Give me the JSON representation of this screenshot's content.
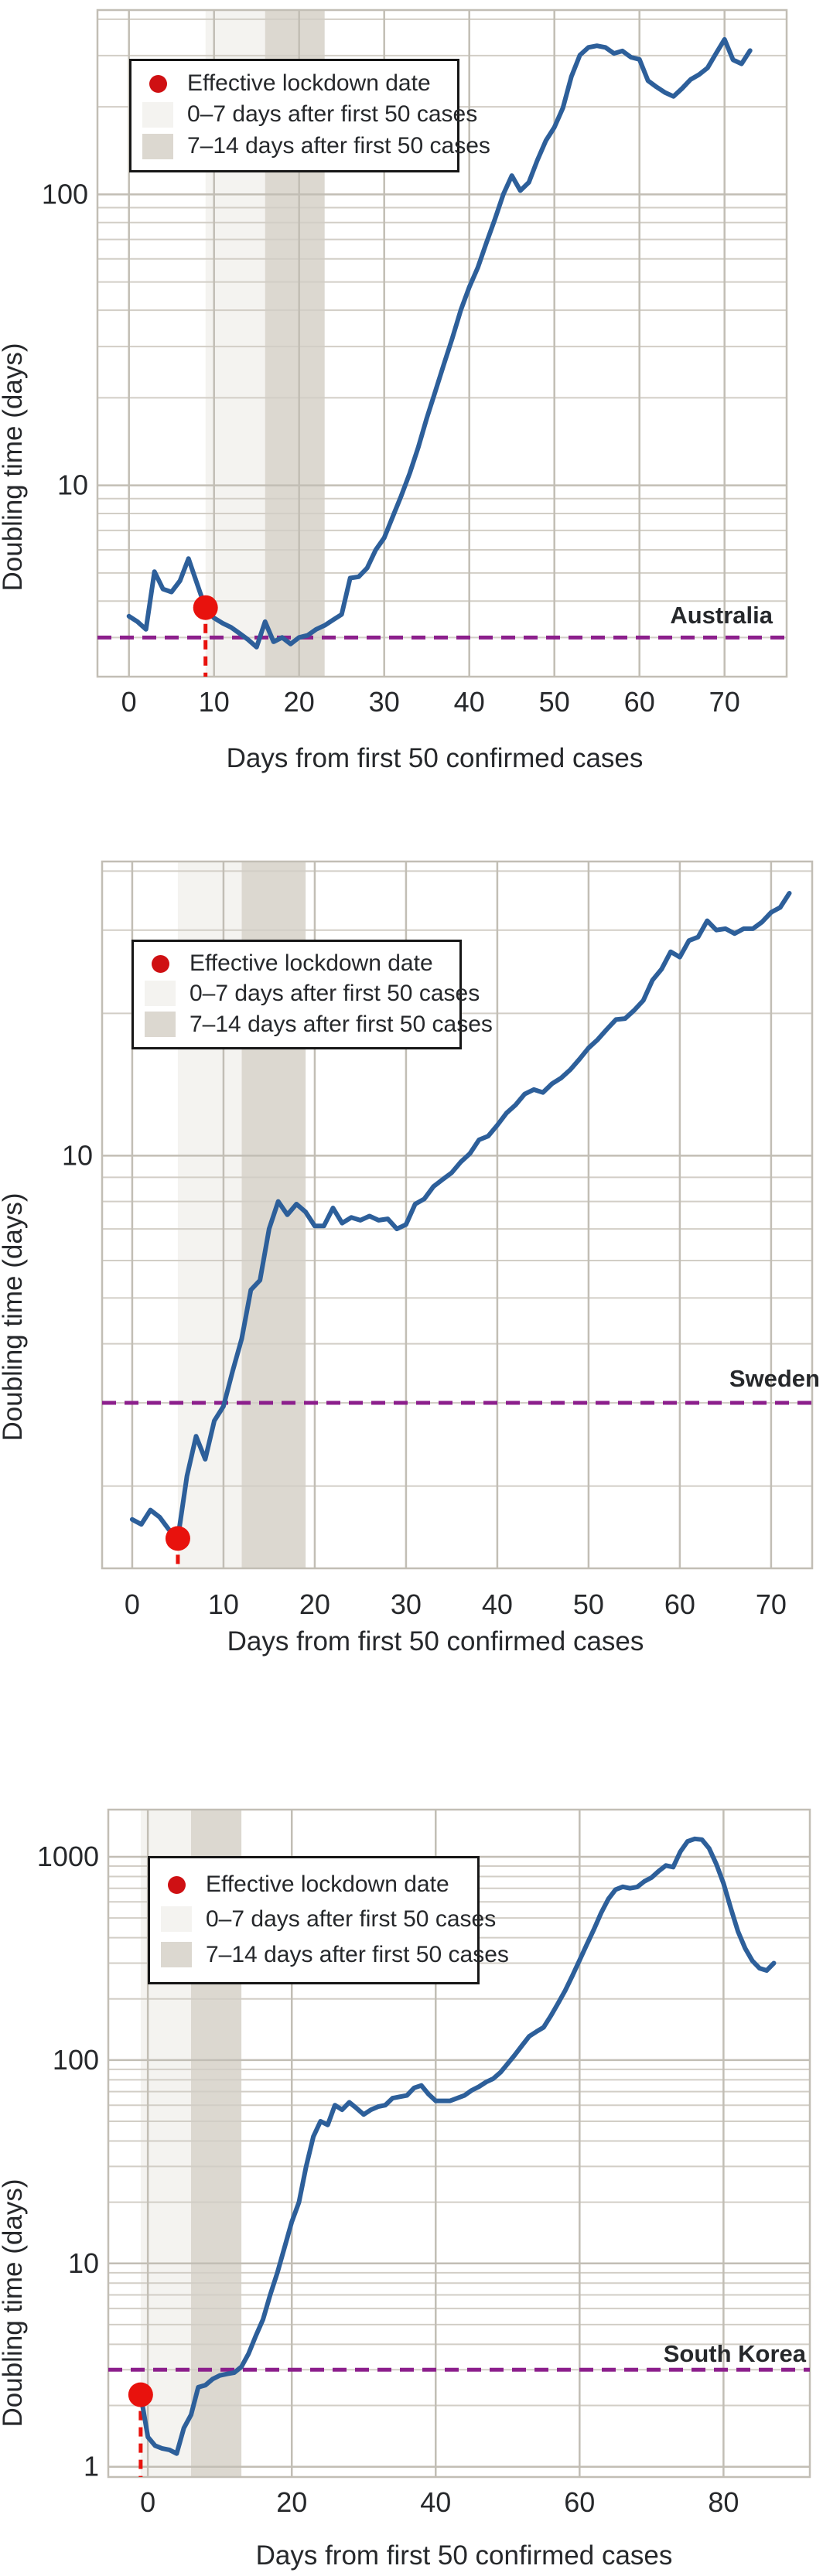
{
  "page": {
    "background": "#ffffff"
  },
  "colors": {
    "line_blue": "#2d5f9a",
    "lockdown_red": "#e8120d",
    "legend_dot_red": "#cf1013",
    "reference_purple": "#8c1f8c",
    "band_light": "#f4f3f0",
    "band_dark": "#dcd8d0",
    "grid_minor": "#d2cec6",
    "grid_major": "#c2beb5",
    "text": "#26282b"
  },
  "legend": {
    "items": [
      {
        "icon": "lockdown-dot-icon",
        "label": "Effective lockdown date"
      },
      {
        "icon": "light-band-swatch",
        "label": "0–7 days after first 50 cases"
      },
      {
        "icon": "dark-band-swatch",
        "label": "7–14 days after first 50 cases"
      }
    ]
  },
  "chart_data": [
    {
      "type": "line",
      "country": "Australia",
      "xlabel": "Days from first 50 confirmed cases",
      "ylabel": "Doubling time (days)",
      "xlim": [
        -3.7,
        77.3
      ],
      "ylim_log": [
        2.2,
        430
      ],
      "xticks": [
        0,
        10,
        20,
        30,
        40,
        50,
        60,
        70
      ],
      "yticks": [
        {
          "v": 10,
          "label": "10"
        },
        {
          "v": 100,
          "label": "100"
        }
      ],
      "grid_minor_y": [
        3,
        4,
        5,
        6,
        7,
        8,
        9,
        20,
        30,
        40,
        50,
        60,
        70,
        80,
        90,
        200,
        300,
        400
      ],
      "reference_line_value": 3.0,
      "lockdown": {
        "day": 9,
        "value": 3.8
      },
      "bands": {
        "light_days": [
          9,
          16
        ],
        "dark_days": [
          16,
          23
        ]
      },
      "series": [
        [
          0,
          3.55
        ],
        [
          1,
          3.4
        ],
        [
          2,
          3.2
        ],
        [
          3,
          5.05
        ],
        [
          4,
          4.4
        ],
        [
          5,
          4.3
        ],
        [
          6,
          4.7
        ],
        [
          7,
          5.6
        ],
        [
          8,
          4.6
        ],
        [
          9,
          3.78
        ],
        [
          10,
          3.5
        ],
        [
          11,
          3.36
        ],
        [
          12,
          3.25
        ],
        [
          13,
          3.1
        ],
        [
          14,
          2.95
        ],
        [
          15,
          2.78
        ],
        [
          16,
          3.4
        ],
        [
          17,
          2.9
        ],
        [
          18,
          3.0
        ],
        [
          19,
          2.85
        ],
        [
          20,
          3.0
        ],
        [
          21,
          3.05
        ],
        [
          22,
          3.2
        ],
        [
          23,
          3.3
        ],
        [
          24,
          3.45
        ],
        [
          25,
          3.6
        ],
        [
          26,
          4.8
        ],
        [
          27,
          4.85
        ],
        [
          28,
          5.2
        ],
        [
          29,
          6.0
        ],
        [
          30,
          6.6
        ],
        [
          31,
          7.8
        ],
        [
          32,
          9.2
        ],
        [
          33,
          11
        ],
        [
          34,
          13.5
        ],
        [
          35,
          17
        ],
        [
          36,
          21
        ],
        [
          37,
          26
        ],
        [
          38,
          32
        ],
        [
          39,
          40
        ],
        [
          40,
          48
        ],
        [
          41,
          56
        ],
        [
          42,
          68
        ],
        [
          43,
          82
        ],
        [
          44,
          100
        ],
        [
          45,
          116
        ],
        [
          46,
          103
        ],
        [
          47,
          110
        ],
        [
          48,
          131
        ],
        [
          49,
          153
        ],
        [
          50,
          170
        ],
        [
          51,
          198
        ],
        [
          52,
          254
        ],
        [
          53,
          301
        ],
        [
          54,
          320
        ],
        [
          55,
          324
        ],
        [
          56,
          320
        ],
        [
          57,
          305
        ],
        [
          58,
          311
        ],
        [
          59,
          296
        ],
        [
          60,
          291
        ],
        [
          61,
          246
        ],
        [
          62,
          234
        ],
        [
          63,
          224
        ],
        [
          64,
          217
        ],
        [
          65,
          231
        ],
        [
          66,
          248
        ],
        [
          67,
          258
        ],
        [
          68,
          272
        ],
        [
          69,
          305
        ],
        [
          70,
          341
        ],
        [
          71,
          290
        ],
        [
          72,
          281
        ],
        [
          73,
          312
        ]
      ]
    },
    {
      "type": "line",
      "country": "Sweden",
      "xlabel": "Days from first 50 confirmed cases",
      "ylabel": "Doubling time (days)",
      "xlim": [
        -3.3,
        74.5
      ],
      "ylim_log": [
        1.34,
        41.9
      ],
      "xticks": [
        0,
        10,
        20,
        30,
        40,
        50,
        60,
        70
      ],
      "yticks": [
        {
          "v": 10,
          "label": "10"
        }
      ],
      "grid_minor_y": [
        2,
        3,
        4,
        5,
        6,
        7,
        8,
        9,
        20,
        30,
        40
      ],
      "reference_line_value": 3.0,
      "lockdown": {
        "day": 5,
        "value": 1.55
      },
      "bands": {
        "light_days": [
          5,
          12
        ],
        "dark_days": [
          12,
          19
        ]
      },
      "series": [
        [
          0,
          1.7
        ],
        [
          1,
          1.66
        ],
        [
          2,
          1.78
        ],
        [
          3,
          1.72
        ],
        [
          4,
          1.62
        ],
        [
          5,
          1.55
        ],
        [
          6,
          2.1
        ],
        [
          7,
          2.55
        ],
        [
          8,
          2.28
        ],
        [
          9,
          2.75
        ],
        [
          10,
          2.95
        ],
        [
          11,
          3.5
        ],
        [
          12,
          4.1
        ],
        [
          13,
          5.2
        ],
        [
          14,
          5.45
        ],
        [
          15,
          7.0
        ],
        [
          16,
          8.0
        ],
        [
          17,
          7.5
        ],
        [
          18,
          7.9
        ],
        [
          19,
          7.6
        ],
        [
          20,
          7.1
        ],
        [
          21,
          7.1
        ],
        [
          22,
          7.75
        ],
        [
          23,
          7.2
        ],
        [
          24,
          7.4
        ],
        [
          25,
          7.3
        ],
        [
          26,
          7.45
        ],
        [
          27,
          7.3
        ],
        [
          28,
          7.35
        ],
        [
          29,
          7.0
        ],
        [
          30,
          7.15
        ],
        [
          31,
          7.9
        ],
        [
          32,
          8.1
        ],
        [
          33,
          8.6
        ],
        [
          34,
          8.9
        ],
        [
          35,
          9.2
        ],
        [
          36,
          9.7
        ],
        [
          37,
          10.1
        ],
        [
          38,
          10.8
        ],
        [
          39,
          11.0
        ],
        [
          40,
          11.6
        ],
        [
          41,
          12.3
        ],
        [
          42,
          12.8
        ],
        [
          43,
          13.5
        ],
        [
          44,
          13.8
        ],
        [
          45,
          13.6
        ],
        [
          46,
          14.2
        ],
        [
          47,
          14.6
        ],
        [
          48,
          15.2
        ],
        [
          49,
          16.0
        ],
        [
          50,
          16.9
        ],
        [
          51,
          17.6
        ],
        [
          52,
          18.5
        ],
        [
          53,
          19.4
        ],
        [
          54,
          19.5
        ],
        [
          55,
          20.3
        ],
        [
          56,
          21.3
        ],
        [
          57,
          23.5
        ],
        [
          58,
          24.8
        ],
        [
          59,
          27.0
        ],
        [
          60,
          26.3
        ],
        [
          61,
          28.5
        ],
        [
          62,
          29.0
        ],
        [
          63,
          31.4
        ],
        [
          64,
          30.0
        ],
        [
          65,
          30.2
        ],
        [
          66,
          29.5
        ],
        [
          67,
          30.2
        ],
        [
          68,
          30.2
        ],
        [
          69,
          31.2
        ],
        [
          70,
          32.7
        ],
        [
          71,
          33.5
        ],
        [
          72,
          35.9
        ]
      ]
    },
    {
      "type": "line",
      "country": "South Korea",
      "xlabel": "Days from first 50 confirmed cases",
      "ylabel": "Doubling time (days)",
      "xlim": [
        -5.5,
        92.0
      ],
      "ylim_log": [
        0.89,
        1706
      ],
      "xticks": [
        0,
        20,
        40,
        60,
        80
      ],
      "yticks": [
        {
          "v": 1,
          "label": "1"
        },
        {
          "v": 10,
          "label": "10"
        },
        {
          "v": 100,
          "label": "100"
        },
        {
          "v": 1000,
          "label": "1000"
        }
      ],
      "grid_minor_y": [
        2,
        3,
        4,
        5,
        6,
        7,
        8,
        9,
        20,
        30,
        40,
        50,
        60,
        70,
        80,
        90,
        200,
        300,
        400,
        500,
        600,
        700,
        800,
        900
      ],
      "reference_line_value": 3.0,
      "lockdown": {
        "day": -1,
        "value": 2.26
      },
      "bands": {
        "light_days": [
          -1,
          6
        ],
        "dark_days": [
          6,
          13
        ]
      },
      "series": [
        [
          -1,
          2.26
        ],
        [
          0,
          1.4
        ],
        [
          1,
          1.27
        ],
        [
          2,
          1.23
        ],
        [
          3,
          1.21
        ],
        [
          4,
          1.16
        ],
        [
          5,
          1.55
        ],
        [
          6,
          1.8
        ],
        [
          7,
          2.46
        ],
        [
          8,
          2.52
        ],
        [
          9,
          2.7
        ],
        [
          10,
          2.81
        ],
        [
          11,
          2.86
        ],
        [
          12,
          2.9
        ],
        [
          13,
          3.1
        ],
        [
          14,
          3.6
        ],
        [
          15,
          4.4
        ],
        [
          16,
          5.3
        ],
        [
          17,
          7.0
        ],
        [
          18,
          9.0
        ],
        [
          19,
          12
        ],
        [
          20,
          16
        ],
        [
          21,
          20
        ],
        [
          22,
          30
        ],
        [
          23,
          42
        ],
        [
          24,
          50
        ],
        [
          25,
          48
        ],
        [
          26,
          60
        ],
        [
          27,
          57
        ],
        [
          28,
          62
        ],
        [
          29,
          58
        ],
        [
          30,
          54
        ],
        [
          31,
          57
        ],
        [
          32,
          59
        ],
        [
          33,
          60
        ],
        [
          34,
          65
        ],
        [
          35,
          66
        ],
        [
          36,
          67
        ],
        [
          37,
          73
        ],
        [
          38,
          75
        ],
        [
          39,
          68
        ],
        [
          40,
          63
        ],
        [
          41,
          63
        ],
        [
          42,
          63
        ],
        [
          43,
          65
        ],
        [
          44,
          67
        ],
        [
          45,
          71
        ],
        [
          46,
          74
        ],
        [
          47,
          78
        ],
        [
          48,
          81
        ],
        [
          49,
          87
        ],
        [
          50,
          96
        ],
        [
          51,
          106
        ],
        [
          52,
          118
        ],
        [
          53,
          131
        ],
        [
          54,
          138
        ],
        [
          55,
          145
        ],
        [
          56,
          165
        ],
        [
          57,
          190
        ],
        [
          58,
          220
        ],
        [
          59,
          260
        ],
        [
          60,
          310
        ],
        [
          61,
          370
        ],
        [
          62,
          440
        ],
        [
          63,
          530
        ],
        [
          64,
          620
        ],
        [
          65,
          690
        ],
        [
          66,
          712
        ],
        [
          67,
          700
        ],
        [
          68,
          710
        ],
        [
          69,
          757
        ],
        [
          70,
          790
        ],
        [
          71,
          850
        ],
        [
          72,
          906
        ],
        [
          73,
          890
        ],
        [
          74,
          1060
        ],
        [
          75,
          1190
        ],
        [
          76,
          1225
        ],
        [
          77,
          1215
        ],
        [
          78,
          1100
        ],
        [
          79,
          920
        ],
        [
          80,
          740
        ],
        [
          81,
          560
        ],
        [
          82,
          430
        ],
        [
          83,
          355
        ],
        [
          84,
          308
        ],
        [
          85,
          283
        ],
        [
          86,
          276
        ],
        [
          87,
          300
        ]
      ]
    }
  ]
}
